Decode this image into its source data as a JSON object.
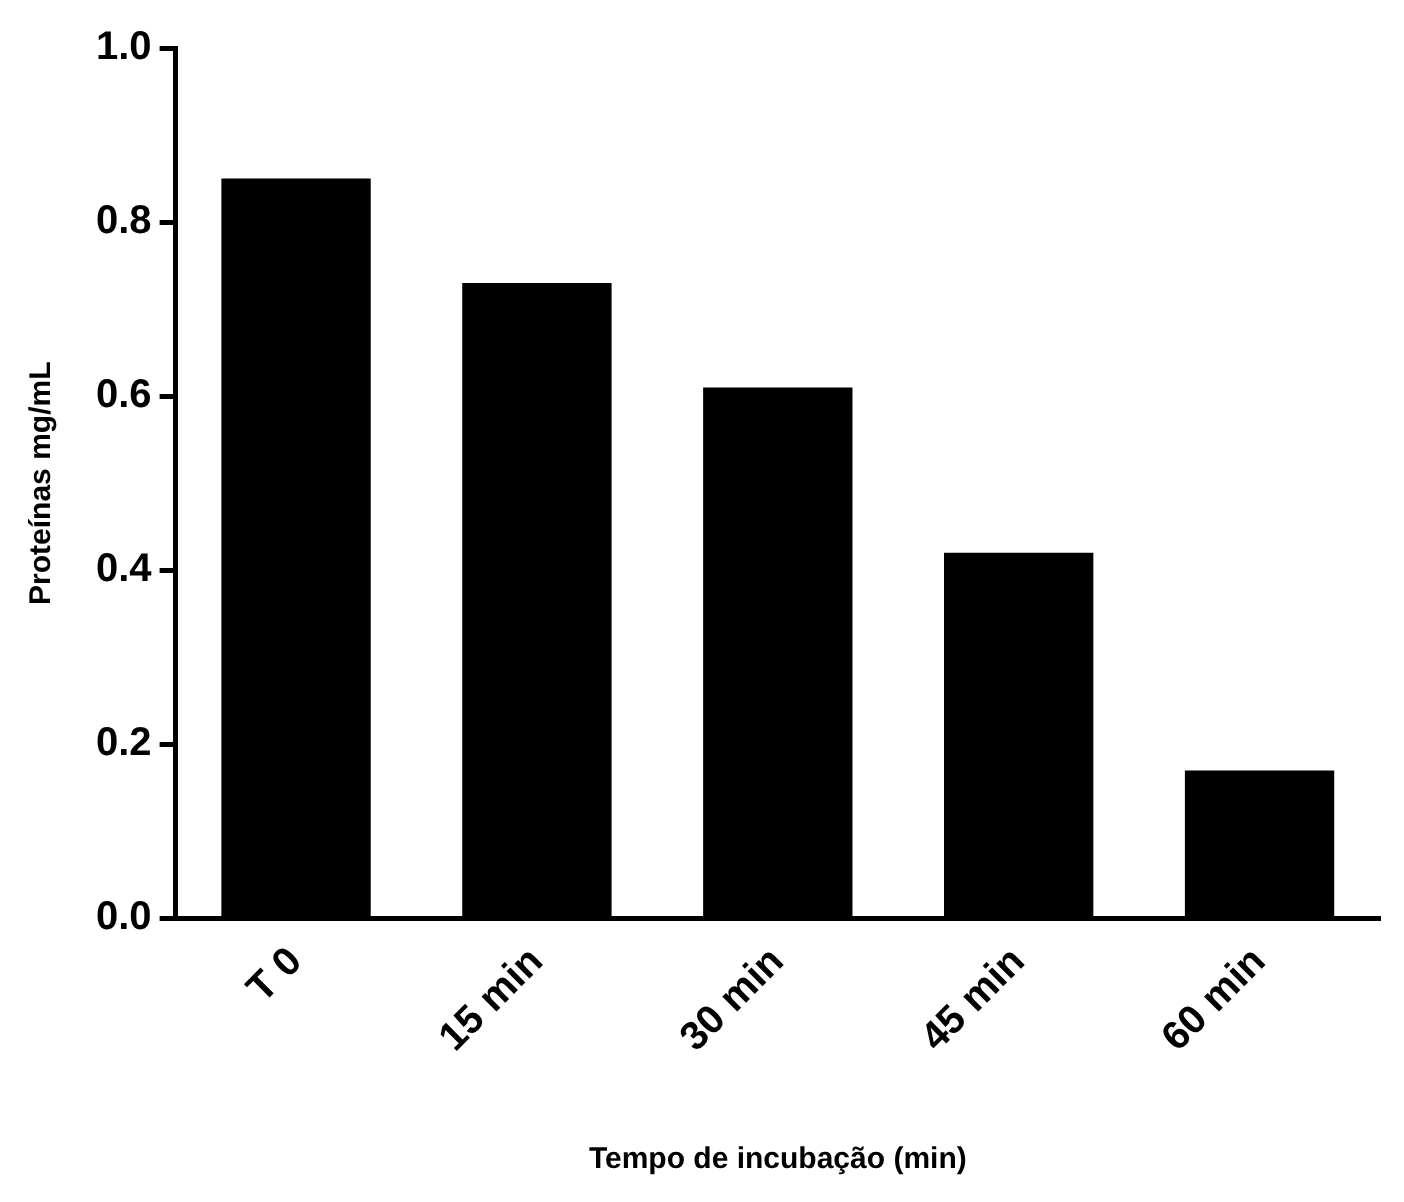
{
  "chart_data": {
    "type": "bar",
    "xlabel": "Tempo de incubação (min)",
    "ylabel": "Proteínas mg/mL",
    "categories": [
      "T 0",
      "15 min",
      "30 min",
      "45 min",
      "60 min"
    ],
    "values": [
      0.85,
      0.73,
      0.61,
      0.42,
      0.17
    ],
    "color": "#000000",
    "ylim": [
      0,
      1.0
    ],
    "yticks": [
      {
        "value": 0,
        "label": "0.0"
      },
      {
        "value": 0.2,
        "label": "0.2"
      },
      {
        "value": 0.4,
        "label": "0.4"
      },
      {
        "value": 0.6,
        "label": "0.6"
      },
      {
        "value": 0.8,
        "label": "0.8"
      },
      {
        "value": 1.0,
        "label": "1.0"
      }
    ],
    "grid": false,
    "legend": false
  }
}
